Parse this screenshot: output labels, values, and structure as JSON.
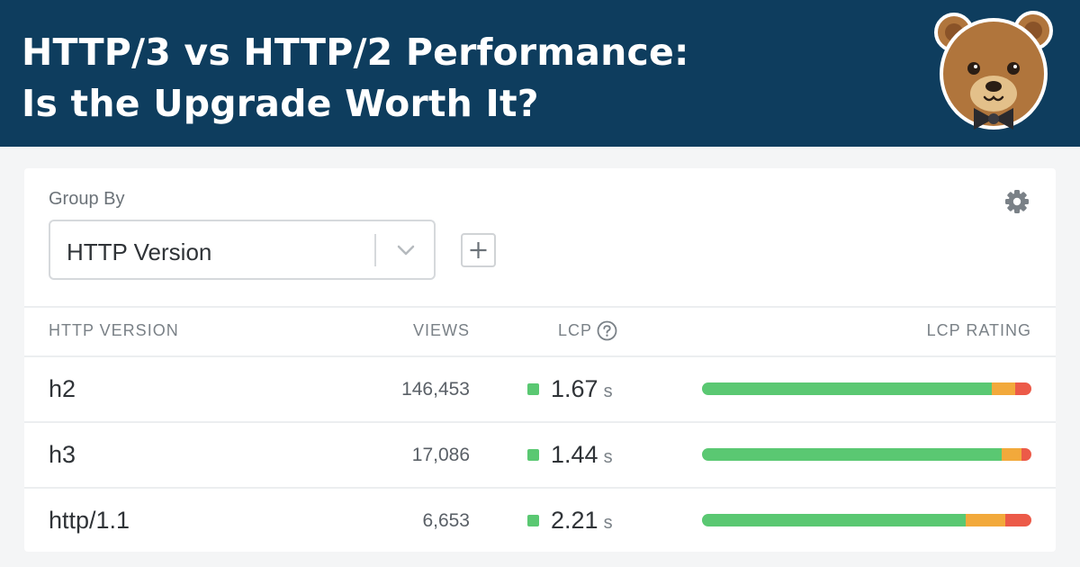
{
  "banner": {
    "title_line1": "HTTP/3 vs HTTP/2 Performance:",
    "title_line2": "Is the Upgrade Worth It?",
    "mascot_icon": "bear-with-bowtie-logo"
  },
  "controls": {
    "group_by_label": "Group By",
    "group_by_value": "HTTP Version",
    "chevron_icon": "chevron-down-icon",
    "add_icon": "plus-icon",
    "settings_icon": "gear-icon"
  },
  "table": {
    "headers": {
      "version": "HTTP VERSION",
      "views": "VIEWS",
      "lcp": "LCP",
      "lcp_help_icon": "help-circle-icon",
      "rating": "LCP RATING"
    },
    "rows": [
      {
        "name": "h2",
        "views": "146,453",
        "lcp": "1.67",
        "unit": "s",
        "rating": {
          "good": 0.88,
          "needs_improvement": 0.07,
          "poor": 0.05
        }
      },
      {
        "name": "h3",
        "views": "17,086",
        "lcp": "1.44",
        "unit": "s",
        "rating": {
          "good": 0.91,
          "needs_improvement": 0.06,
          "poor": 0.03
        }
      },
      {
        "name": "http/1.1",
        "views": "6,653",
        "lcp": "2.21",
        "unit": "s",
        "rating": {
          "good": 0.8,
          "needs_improvement": 0.12,
          "poor": 0.08
        }
      }
    ]
  },
  "colors": {
    "banner": "#0e3d5e",
    "good": "#5ac872",
    "needs_improvement": "#f2a93b",
    "poor": "#ec5a48"
  }
}
